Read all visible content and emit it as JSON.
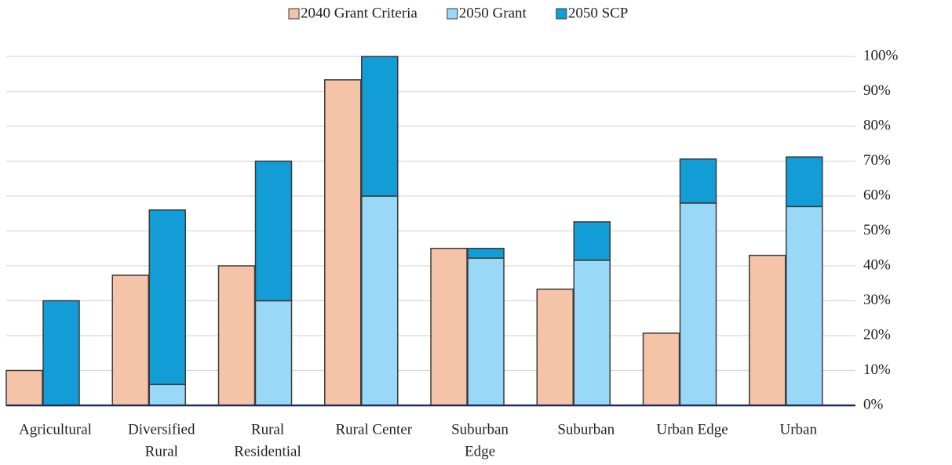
{
  "chart_data": {
    "type": "grouped-stacked-bar",
    "categories": [
      [
        "Agricultural"
      ],
      [
        "Diversified",
        "Rural"
      ],
      [
        "Rural",
        "Residential"
      ],
      [
        "Rural Center"
      ],
      [
        "Suburban",
        "Edge"
      ],
      [
        "Suburban"
      ],
      [
        "Urban Edge"
      ],
      [
        "Urban"
      ]
    ],
    "series": [
      {
        "name": "2040 Grant Criteria",
        "color": "#f5c4a8",
        "stack": "a",
        "values": [
          10,
          37.3,
          40,
          93.3,
          45,
          33.3,
          20.7,
          43
        ]
      },
      {
        "name": "2050 Grant",
        "color": "#99d9f7",
        "stack": "b",
        "values": [
          0,
          6,
          30,
          60,
          42.2,
          41.6,
          58,
          57
        ]
      },
      {
        "name": "2050 SCP",
        "color": "#139dd6",
        "stack": "b",
        "values": [
          30,
          50,
          40,
          40,
          2.8,
          11,
          12.6,
          14.2
        ]
      }
    ],
    "ylim": [
      0,
      100
    ],
    "yticks": [
      {
        "value": 0,
        "label": "0%"
      },
      {
        "value": 10,
        "label": "10%"
      },
      {
        "value": 20,
        "label": "20%"
      },
      {
        "value": 30,
        "label": "30%"
      },
      {
        "value": 40,
        "label": "40%"
      },
      {
        "value": 50,
        "label": "50%"
      },
      {
        "value": 60,
        "label": "60%"
      },
      {
        "value": 70,
        "label": "70%"
      },
      {
        "value": 80,
        "label": "80%"
      },
      {
        "value": 90,
        "label": "90%"
      },
      {
        "value": 100,
        "label": "100%"
      }
    ],
    "grid": true,
    "legend": "top"
  }
}
